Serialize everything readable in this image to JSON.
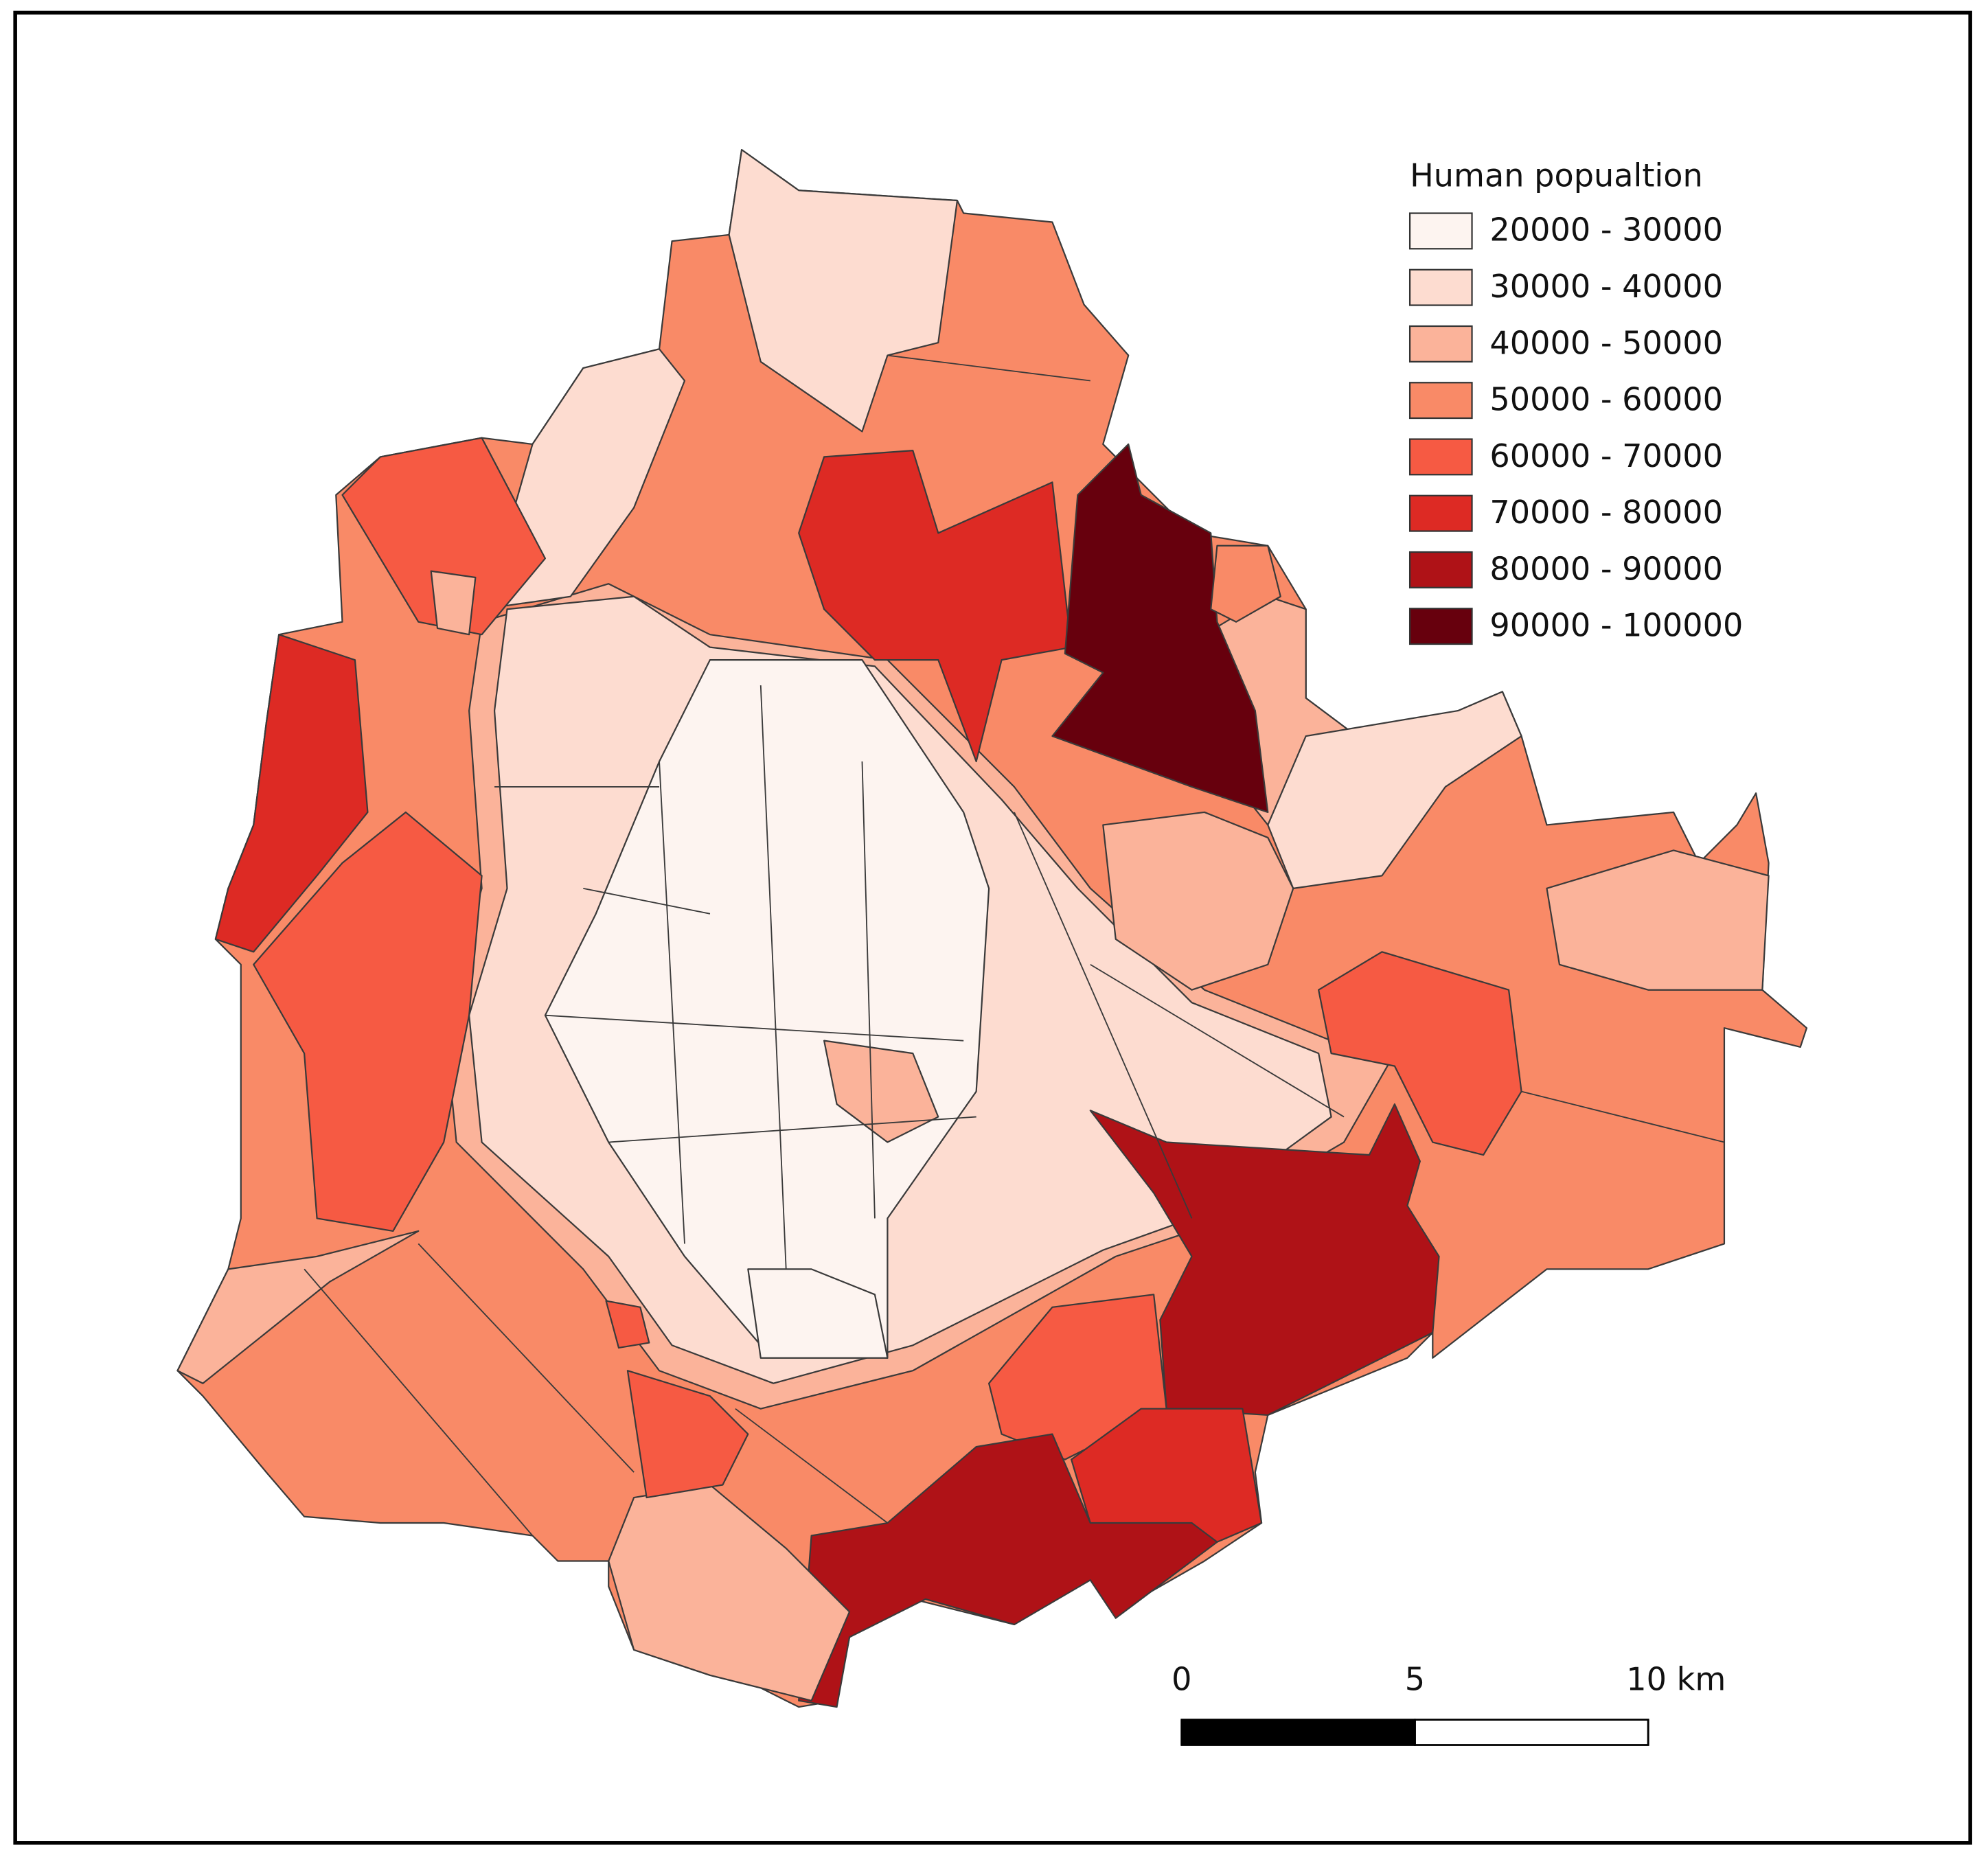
{
  "legend": {
    "title": "Human popualtion",
    "items": [
      {
        "label": "20000 - 30000",
        "color": "#fdf4f0"
      },
      {
        "label": "30000 - 40000",
        "color": "#fddcd0"
      },
      {
        "label": "40000 - 50000",
        "color": "#fbb39a"
      },
      {
        "label": "50000 - 60000",
        "color": "#f98a67"
      },
      {
        "label": "60000 - 70000",
        "color": "#f65a43"
      },
      {
        "label": "70000 - 80000",
        "color": "#dd2a24"
      },
      {
        "label": "80000 - 90000",
        "color": "#af1217"
      },
      {
        "label": "90000 - 100000",
        "color": "#67000d"
      }
    ]
  },
  "scale_bar": {
    "xlim": [
      0,
      10
    ],
    "ticks": [
      0,
      5,
      {
        "value": 10,
        "label": "10 km"
      }
    ]
  }
}
